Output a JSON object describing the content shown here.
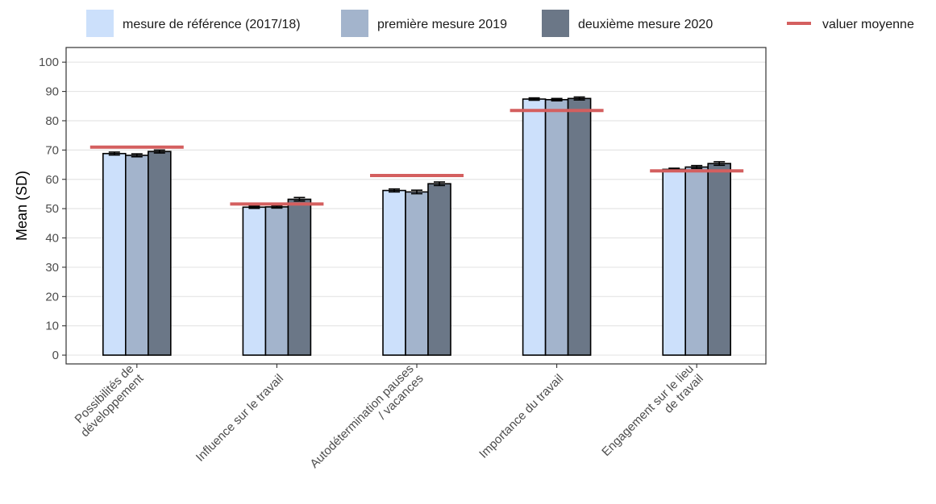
{
  "colors": {
    "series": [
      "#cce0fb",
      "#a3b4cc",
      "#6b7787"
    ],
    "mean_line": "#d45f5f",
    "grid": "#e5e5e5",
    "bar_outline": "#000000"
  },
  "chart_data": {
    "type": "bar",
    "ylabel": "Mean (SD)",
    "ylim": [
      -3,
      105
    ],
    "yticks": [
      0,
      10,
      20,
      30,
      40,
      50,
      60,
      70,
      80,
      90,
      100
    ],
    "grid": true,
    "legend_position": "top",
    "categories": [
      [
        "Possibilités de",
        "développement"
      ],
      [
        "Influence sur le travail"
      ],
      [
        "Autodétermination pauses",
        "/ vacances"
      ],
      [
        "Importance du travail"
      ],
      [
        "Engagement sur le lieu",
        "de travail"
      ]
    ],
    "series": [
      {
        "name": "mesure de référence (2017/18)",
        "values": [
          68.8,
          50.5,
          56.2,
          87.4,
          63.4
        ],
        "error": [
          0.5,
          0.4,
          0.5,
          0.4,
          0.4
        ]
      },
      {
        "name": "première mesure 2019",
        "values": [
          68.2,
          50.6,
          55.7,
          87.2,
          64.2
        ],
        "error": [
          0.5,
          0.4,
          0.6,
          0.4,
          0.5
        ]
      },
      {
        "name": "deuxième mesure 2020",
        "values": [
          69.5,
          53.2,
          58.5,
          87.6,
          65.4
        ],
        "error": [
          0.5,
          0.6,
          0.6,
          0.5,
          0.6
        ]
      }
    ],
    "mean_line": {
      "name": "valuer moyenne",
      "values": [
        71.0,
        51.6,
        61.3,
        83.5,
        62.9
      ]
    }
  }
}
